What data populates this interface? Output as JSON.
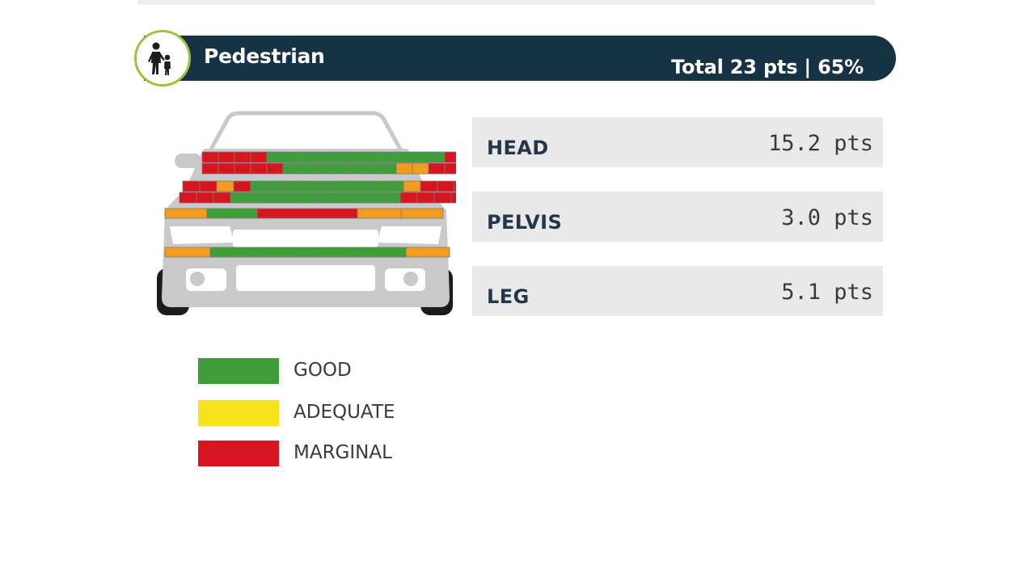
{
  "section": {
    "title": "Pedestrian",
    "total": "Total 23 pts | 65%"
  },
  "scores": [
    {
      "label": "HEAD",
      "value": "15.2 pts"
    },
    {
      "label": "PELVIS",
      "value": "3.0 pts"
    },
    {
      "label": "LEG",
      "value": "5.1 pts"
    }
  ],
  "legend": [
    {
      "label": "GOOD",
      "color": "#3f9d3a"
    },
    {
      "label": "ADEQUATE",
      "color": "#f7e31c"
    },
    {
      "label": "MARGINAL",
      "color": "#d7141f"
    }
  ],
  "colors": {
    "header_bg": "#163245",
    "icon_ring": "#9ac33e",
    "row_bg": "#e9e9e9",
    "orange": "#f39b1c"
  },
  "icons": {
    "section": "pedestrian-icon"
  }
}
